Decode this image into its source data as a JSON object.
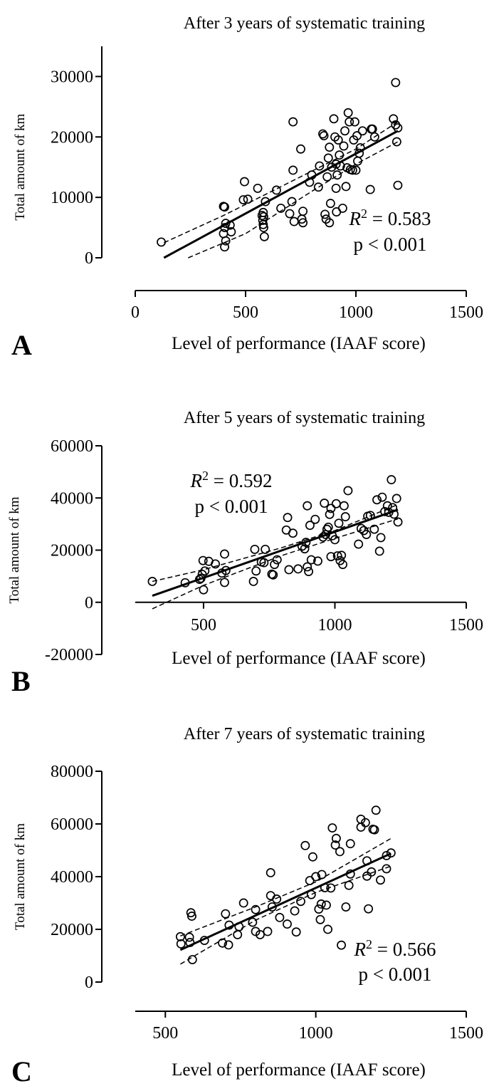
{
  "chart_data": [
    {
      "type": "scatter",
      "panel": "A",
      "title": "After 3 years of systematic training",
      "xlabel": "Level of performance (IAAF score)",
      "ylabel": "Total amount of km",
      "xlim": [
        0,
        1500
      ],
      "ylim": [
        0,
        35000
      ],
      "x_ticks": [
        0,
        500,
        1000,
        1500
      ],
      "y_ticks": [
        0,
        10000,
        20000,
        30000
      ],
      "x_tick_labels": [
        "0",
        "500",
        "1000",
        "1500"
      ],
      "y_tick_labels": [
        "0",
        "10000",
        "20000",
        "30000"
      ],
      "r2_label": "R",
      "r2_sup": "2",
      "r2_value": "= 0.583",
      "p_label": "p < 0.001",
      "fit_line": {
        "x": [
          130,
          1190
        ],
        "y": [
          0,
          21000
        ]
      },
      "ci_upper": {
        "x": [
          130,
          400,
          700,
          1000,
          1190
        ],
        "y": [
          2500,
          7000,
          12500,
          18000,
          22500
        ]
      },
      "ci_lower": {
        "x": [
          240,
          500,
          800,
          1000,
          1190
        ],
        "y": [
          0,
          4000,
          11000,
          15500,
          19200
        ]
      },
      "points": [
        [
          118,
          2600
        ],
        [
          400,
          8500
        ],
        [
          405,
          8400
        ],
        [
          410,
          5700
        ],
        [
          406,
          5000
        ],
        [
          400,
          4000
        ],
        [
          410,
          2800
        ],
        [
          405,
          1800
        ],
        [
          430,
          5400
        ],
        [
          435,
          4300
        ],
        [
          490,
          9600
        ],
        [
          495,
          12600
        ],
        [
          510,
          9700
        ],
        [
          555,
          11500
        ],
        [
          575,
          7000
        ],
        [
          580,
          7500
        ],
        [
          582,
          6800
        ],
        [
          578,
          6200
        ],
        [
          580,
          5500
        ],
        [
          582,
          5000
        ],
        [
          585,
          3500
        ],
        [
          590,
          9300
        ],
        [
          640,
          11200
        ],
        [
          660,
          8200
        ],
        [
          700,
          7300
        ],
        [
          710,
          9300
        ],
        [
          715,
          14500
        ],
        [
          715,
          22500
        ],
        [
          720,
          6000
        ],
        [
          750,
          18000
        ],
        [
          755,
          6400
        ],
        [
          760,
          7700
        ],
        [
          760,
          5800
        ],
        [
          790,
          12500
        ],
        [
          800,
          13700
        ],
        [
          830,
          11700
        ],
        [
          835,
          15200
        ],
        [
          850,
          20500
        ],
        [
          855,
          20200
        ],
        [
          860,
          7200
        ],
        [
          865,
          6400
        ],
        [
          870,
          13400
        ],
        [
          875,
          16500
        ],
        [
          880,
          18300
        ],
        [
          880,
          5800
        ],
        [
          885,
          9000
        ],
        [
          890,
          15000
        ],
        [
          900,
          23000
        ],
        [
          905,
          20000
        ],
        [
          910,
          15500
        ],
        [
          910,
          11500
        ],
        [
          912,
          7600
        ],
        [
          915,
          13700
        ],
        [
          920,
          19500
        ],
        [
          925,
          17000
        ],
        [
          930,
          15200
        ],
        [
          940,
          8200
        ],
        [
          945,
          18500
        ],
        [
          950,
          21000
        ],
        [
          955,
          11800
        ],
        [
          960,
          14900
        ],
        [
          965,
          24000
        ],
        [
          970,
          22500
        ],
        [
          975,
          14600
        ],
        [
          985,
          14500
        ],
        [
          990,
          19500
        ],
        [
          995,
          22500
        ],
        [
          1000,
          14500
        ],
        [
          1005,
          20200
        ],
        [
          1008,
          16000
        ],
        [
          1015,
          17300
        ],
        [
          1020,
          18200
        ],
        [
          1030,
          21000
        ],
        [
          1065,
          11300
        ],
        [
          1070,
          21300
        ],
        [
          1075,
          21300
        ],
        [
          1085,
          20000
        ],
        [
          1170,
          23000
        ],
        [
          1180,
          22000
        ],
        [
          1180,
          29000
        ],
        [
          1185,
          19200
        ],
        [
          1190,
          21500
        ],
        [
          1190,
          12000
        ]
      ]
    },
    {
      "type": "scatter",
      "panel": "B",
      "title": "After 5 years of systematic training",
      "xlabel": "Level of performance (IAAF score)",
      "ylabel": "Total amount of km",
      "xlim": [
        240,
        1500
      ],
      "ylim": [
        -20000,
        60000
      ],
      "x_ticks": [
        500,
        1000,
        1500
      ],
      "y_ticks": [
        -20000,
        0,
        20000,
        40000,
        60000
      ],
      "x_tick_labels": [
        "500",
        "1000",
        "1500"
      ],
      "y_tick_labels": [
        "-20000",
        "0",
        "20000",
        "40000",
        "60000"
      ],
      "r2_label": "R",
      "r2_sup": "2",
      "r2_value": "= 0.592",
      "p_label": "p < 0.001",
      "fit_line": {
        "x": [
          305,
          1240
        ],
        "y": [
          2500,
          35500
        ]
      },
      "ci_upper": {
        "x": [
          305,
          500,
          800,
          1000,
          1240
        ],
        "y": [
          8000,
          12500,
          21000,
          27500,
          37500
        ]
      },
      "ci_lower": {
        "x": [
          305,
          500,
          800,
          1000,
          1240
        ],
        "y": [
          -2500,
          6500,
          18000,
          24500,
          32000
        ]
      },
      "points": [
        [
          305,
          8000
        ],
        [
          430,
          7500
        ],
        [
          485,
          8800
        ],
        [
          490,
          9200
        ],
        [
          495,
          10700
        ],
        [
          500,
          4800
        ],
        [
          498,
          16000
        ],
        [
          505,
          12000
        ],
        [
          520,
          15700
        ],
        [
          545,
          14700
        ],
        [
          570,
          11200
        ],
        [
          580,
          18500
        ],
        [
          585,
          12200
        ],
        [
          580,
          7600
        ],
        [
          690,
          8000
        ],
        [
          695,
          20300
        ],
        [
          700,
          12000
        ],
        [
          720,
          15500
        ],
        [
          730,
          15200
        ],
        [
          735,
          20300
        ],
        [
          760,
          10800
        ],
        [
          765,
          10500
        ],
        [
          770,
          14500
        ],
        [
          780,
          16300
        ],
        [
          815,
          27700
        ],
        [
          820,
          32500
        ],
        [
          825,
          12500
        ],
        [
          840,
          26500
        ],
        [
          860,
          12800
        ],
        [
          875,
          21500
        ],
        [
          885,
          20500
        ],
        [
          890,
          23000
        ],
        [
          895,
          37000
        ],
        [
          895,
          13600
        ],
        [
          900,
          11800
        ],
        [
          905,
          29500
        ],
        [
          910,
          16300
        ],
        [
          925,
          31800
        ],
        [
          935,
          15800
        ],
        [
          955,
          25000
        ],
        [
          960,
          38000
        ],
        [
          965,
          26000
        ],
        [
          970,
          28000
        ],
        [
          975,
          28800
        ],
        [
          980,
          33700
        ],
        [
          985,
          36000
        ],
        [
          985,
          17500
        ],
        [
          990,
          25500
        ],
        [
          1000,
          24000
        ],
        [
          1005,
          37800
        ],
        [
          1010,
          17800
        ],
        [
          1015,
          30300
        ],
        [
          1020,
          16000
        ],
        [
          1025,
          18000
        ],
        [
          1030,
          14500
        ],
        [
          1035,
          37000
        ],
        [
          1040,
          32800
        ],
        [
          1050,
          42800
        ],
        [
          1090,
          22300
        ],
        [
          1100,
          28300
        ],
        [
          1110,
          27500
        ],
        [
          1120,
          26000
        ],
        [
          1125,
          33000
        ],
        [
          1135,
          33300
        ],
        [
          1150,
          28000
        ],
        [
          1160,
          39300
        ],
        [
          1170,
          19600
        ],
        [
          1175,
          24800
        ],
        [
          1180,
          40300
        ],
        [
          1190,
          34800
        ],
        [
          1200,
          37000
        ],
        [
          1205,
          34500
        ],
        [
          1215,
          47000
        ],
        [
          1220,
          36300
        ],
        [
          1225,
          33800
        ],
        [
          1235,
          39800
        ],
        [
          1240,
          30800
        ]
      ]
    },
    {
      "type": "scatter",
      "panel": "C",
      "title": "After 7 years of systematic training",
      "xlabel": "Level of performance (IAAF score)",
      "ylabel": "Total amount of km",
      "xlim": [
        400,
        1500
      ],
      "ylim": [
        0,
        80000
      ],
      "x_ticks": [
        500,
        1000,
        1500
      ],
      "y_ticks": [
        0,
        20000,
        40000,
        60000,
        80000
      ],
      "x_tick_labels": [
        "500",
        "1000",
        "1500"
      ],
      "y_tick_labels": [
        "0",
        "20000",
        "40000",
        "60000",
        "80000"
      ],
      "r2_label": "R",
      "r2_sup": "2",
      "r2_value": "= 0.566",
      "p_label": "p < 0.001",
      "fit_line": {
        "x": [
          550,
          1250
        ],
        "y": [
          12200,
          48800
        ]
      },
      "ci_upper": {
        "x": [
          550,
          800,
          1000,
          1250
        ],
        "y": [
          17500,
          28500,
          38000,
          54500
        ]
      },
      "ci_lower": {
        "x": [
          550,
          800,
          1000,
          1250
        ],
        "y": [
          6800,
          23500,
          34000,
          44000
        ]
      },
      "points": [
        [
          550,
          17200
        ],
        [
          552,
          14500
        ],
        [
          580,
          17000
        ],
        [
          582,
          15000
        ],
        [
          585,
          26300
        ],
        [
          588,
          25000
        ],
        [
          590,
          8500
        ],
        [
          630,
          15800
        ],
        [
          690,
          14800
        ],
        [
          700,
          25900
        ],
        [
          710,
          14100
        ],
        [
          712,
          21600
        ],
        [
          740,
          18000
        ],
        [
          745,
          21000
        ],
        [
          760,
          30000
        ],
        [
          790,
          22700
        ],
        [
          800,
          19200
        ],
        [
          800,
          27500
        ],
        [
          815,
          18000
        ],
        [
          840,
          19200
        ],
        [
          850,
          32800
        ],
        [
          850,
          41500
        ],
        [
          855,
          28500
        ],
        [
          870,
          31500
        ],
        [
          880,
          24500
        ],
        [
          905,
          22000
        ],
        [
          930,
          27000
        ],
        [
          935,
          19000
        ],
        [
          950,
          30600
        ],
        [
          965,
          51800
        ],
        [
          980,
          38500
        ],
        [
          985,
          33200
        ],
        [
          990,
          47500
        ],
        [
          1000,
          40000
        ],
        [
          1010,
          27700
        ],
        [
          1015,
          23700
        ],
        [
          1018,
          29600
        ],
        [
          1020,
          40800
        ],
        [
          1030,
          35800
        ],
        [
          1035,
          29200
        ],
        [
          1040,
          20000
        ],
        [
          1050,
          35700
        ],
        [
          1055,
          58500
        ],
        [
          1065,
          52000
        ],
        [
          1068,
          54500
        ],
        [
          1080,
          49500
        ],
        [
          1085,
          14000
        ],
        [
          1100,
          28500
        ],
        [
          1110,
          36700
        ],
        [
          1115,
          41000
        ],
        [
          1115,
          52500
        ],
        [
          1150,
          58800
        ],
        [
          1150,
          61800
        ],
        [
          1165,
          60500
        ],
        [
          1170,
          46000
        ],
        [
          1170,
          40200
        ],
        [
          1175,
          27800
        ],
        [
          1185,
          41800
        ],
        [
          1190,
          58000
        ],
        [
          1195,
          57800
        ],
        [
          1200,
          65200
        ],
        [
          1215,
          38700
        ],
        [
          1235,
          43000
        ],
        [
          1235,
          48000
        ],
        [
          1250,
          49000
        ]
      ]
    }
  ]
}
